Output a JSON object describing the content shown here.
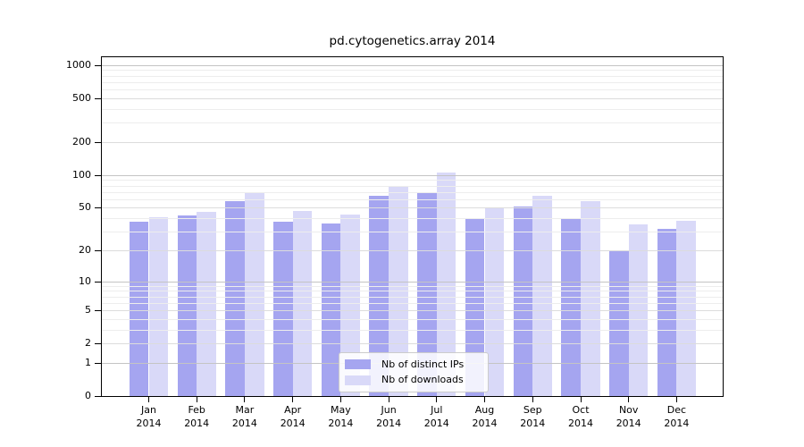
{
  "chart_data": {
    "type": "bar",
    "title": "pd.cytogenetics.array 2014",
    "categories": [
      "Jan",
      "Feb",
      "Mar",
      "Apr",
      "May",
      "Jun",
      "Jul",
      "Aug",
      "Sep",
      "Oct",
      "Nov",
      "Dec"
    ],
    "year_label": "2014",
    "series": [
      {
        "name": "Nb of distinct IPs",
        "color": "#a5a5f0",
        "values": [
          37,
          42,
          58,
          37,
          36,
          64,
          69,
          39,
          51,
          39,
          20,
          32
        ]
      },
      {
        "name": "Nb of downloads",
        "color": "#d9d9f8",
        "values": [
          41,
          46,
          70,
          47,
          43,
          80,
          105,
          50,
          64,
          58,
          35,
          38
        ]
      }
    ],
    "yscale": "log1p",
    "yticks": [
      0,
      1,
      2,
      5,
      10,
      20,
      50,
      100,
      200,
      500,
      1000
    ],
    "ylim": [
      0,
      1230
    ],
    "xlabel": "",
    "ylabel": "",
    "grid": "horizontal",
    "legend_position": "lower center"
  }
}
